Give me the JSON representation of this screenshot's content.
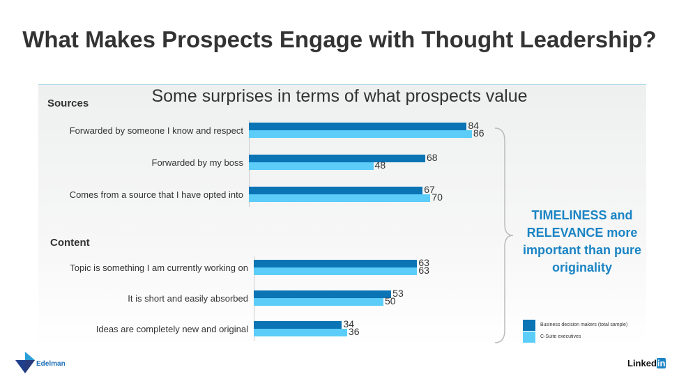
{
  "title": "What Makes Prospects Engage with Thought Leadership?",
  "subtitle": "Some surprises in terms of what prospects value",
  "callout": "TIMELINESS and RELEVANCE more important than pure originality",
  "logos": {
    "left": "Edelman",
    "right_text": "Linked",
    "right_badge": "in"
  },
  "colors": {
    "business": "#0a74b5",
    "csuite": "#5bcdf8",
    "callout": "#1a84c4"
  },
  "chart_data": {
    "type": "bar",
    "orientation": "horizontal",
    "legend": [
      "Business decision makers (total sample)",
      "C-Suite executives"
    ],
    "legend_position": "bottom-right",
    "groups": [
      {
        "name": "Sources",
        "categories": [
          "Forwarded by someone I know and respect",
          "Forwarded by my boss",
          "Comes from a source that I have opted into"
        ],
        "series": [
          {
            "name": "Business decision makers (total sample)",
            "values": [
              84,
              68,
              67
            ]
          },
          {
            "name": "C-Suite executives",
            "values": [
              86,
              48,
              70
            ]
          }
        ]
      },
      {
        "name": "Content",
        "categories": [
          "Topic is something I am currently working on",
          "It is short and easily absorbed",
          "Ideas are completely new and original"
        ],
        "series": [
          {
            "name": "Business decision makers (total sample)",
            "values": [
              63,
              53,
              34
            ]
          },
          {
            "name": "C-Suite executives",
            "values": [
              63,
              50,
              36
            ]
          }
        ]
      }
    ]
  }
}
